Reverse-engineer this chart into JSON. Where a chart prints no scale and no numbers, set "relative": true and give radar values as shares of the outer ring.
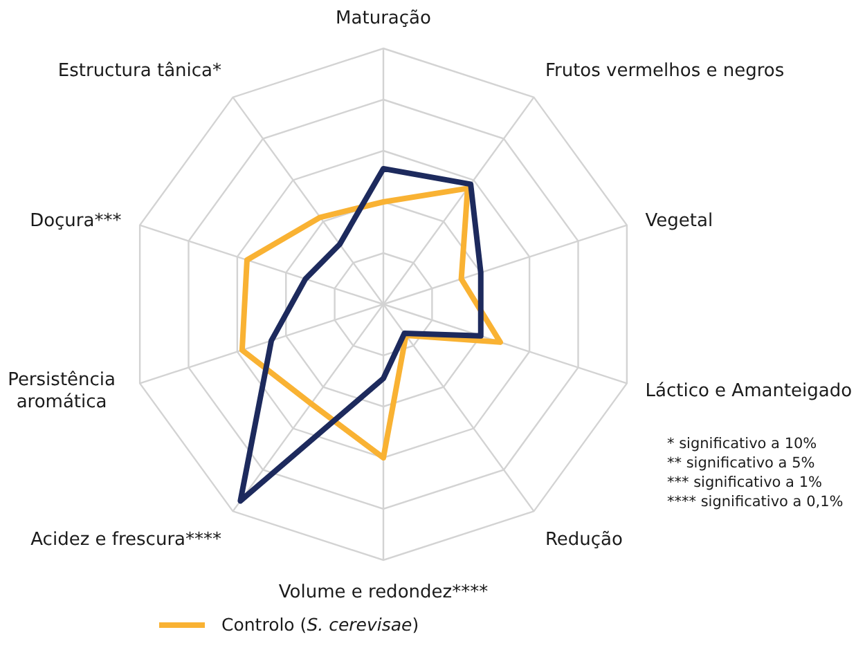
{
  "chart_data": {
    "type": "radar",
    "relative": true,
    "categories": [
      "Maturação",
      "Frutos vermelhos e negros",
      "Vegetal",
      "Láctico e Amanteigado",
      "Redução",
      "Volume e redondez****",
      "Acidez e frescura****",
      "Persistência aromática",
      "Doçura***",
      "Estructura tânica*"
    ],
    "series": [
      {
        "name": "Controlo (S. cerevisae)",
        "color": "#f9b233",
        "values": [
          0.4,
          0.56,
          0.32,
          0.48,
          0.15,
          0.6,
          0.48,
          0.58,
          0.56,
          0.42
        ]
      },
      {
        "color": "#1d2a5d",
        "values": [
          0.53,
          0.58,
          0.4,
          0.4,
          0.14,
          0.29,
          0.95,
          0.46,
          0.32,
          0.29
        ]
      }
    ],
    "grid": true,
    "legend": "bottom",
    "marker": "none",
    "line_style": "solid",
    "annotations": [
      "* significativo a 10%",
      "** significativo a 5%",
      "*** significativo a 1%",
      "**** significativo a 0,1%"
    ]
  }
}
